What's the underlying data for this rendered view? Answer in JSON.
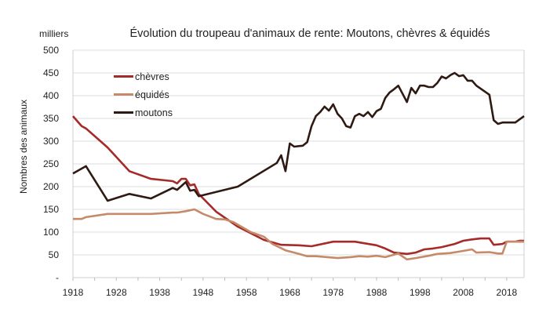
{
  "chart_data": {
    "type": "line",
    "title": "Évolution du troupeau d'animaux de rente: Moutons, chèvres & équidés",
    "unit_label": "milliers",
    "ylabel": "Nombres des animaux",
    "xlabel": "",
    "xlim": [
      1918,
      2022
    ],
    "ylim": [
      0,
      500
    ],
    "x_ticks": [
      1918,
      1928,
      1938,
      1948,
      1958,
      1968,
      1978,
      1988,
      1998,
      2008,
      2018
    ],
    "y_ticks": [
      "-",
      "50",
      "100",
      "150",
      "200",
      "250",
      "300",
      "350",
      "400",
      "450",
      "500"
    ],
    "grid": true,
    "legend_position": "top-left",
    "series": [
      {
        "name": "chèvres",
        "color": "#a52a2a",
        "points": [
          [
            1918,
            355
          ],
          [
            1920,
            333
          ],
          [
            1921,
            328
          ],
          [
            1926,
            286
          ],
          [
            1931,
            234
          ],
          [
            1936,
            217
          ],
          [
            1941,
            212
          ],
          [
            1942,
            207
          ],
          [
            1943,
            217
          ],
          [
            1944,
            217
          ],
          [
            1945,
            203
          ],
          [
            1946,
            205
          ],
          [
            1947,
            184
          ],
          [
            1951,
            145
          ],
          [
            1956,
            112
          ],
          [
            1962,
            83
          ],
          [
            1966,
            72
          ],
          [
            1970,
            71
          ],
          [
            1973,
            69
          ],
          [
            1978,
            79
          ],
          [
            1983,
            79
          ],
          [
            1988,
            71
          ],
          [
            1990,
            64
          ],
          [
            1992,
            55
          ],
          [
            1995,
            52
          ],
          [
            1997,
            55
          ],
          [
            1999,
            62
          ],
          [
            2001,
            64
          ],
          [
            2003,
            67
          ],
          [
            2006,
            74
          ],
          [
            2008,
            81
          ],
          [
            2010,
            84
          ],
          [
            2012,
            86
          ],
          [
            2014,
            86
          ],
          [
            2015,
            72
          ],
          [
            2017,
            74
          ],
          [
            2018,
            79
          ],
          [
            2020,
            79
          ],
          [
            2021,
            81
          ],
          [
            2022,
            81
          ]
        ]
      },
      {
        "name": "équidés",
        "color": "#c48a6a",
        "points": [
          [
            1918,
            129
          ],
          [
            1920,
            129
          ],
          [
            1921,
            133
          ],
          [
            1926,
            140
          ],
          [
            1931,
            140
          ],
          [
            1936,
            140
          ],
          [
            1941,
            143
          ],
          [
            1942,
            143
          ],
          [
            1944,
            146
          ],
          [
            1946,
            150
          ],
          [
            1948,
            140
          ],
          [
            1951,
            129
          ],
          [
            1953,
            128
          ],
          [
            1955,
            122
          ],
          [
            1959,
            100
          ],
          [
            1962,
            90
          ],
          [
            1964,
            74
          ],
          [
            1967,
            60
          ],
          [
            1969,
            55
          ],
          [
            1972,
            47
          ],
          [
            1974,
            47
          ],
          [
            1979,
            43
          ],
          [
            1982,
            45
          ],
          [
            1984,
            47
          ],
          [
            1986,
            46
          ],
          [
            1988,
            48
          ],
          [
            1990,
            45
          ],
          [
            1993,
            53
          ],
          [
            1995,
            40
          ],
          [
            1997,
            43
          ],
          [
            2000,
            48
          ],
          [
            2002,
            52
          ],
          [
            2005,
            54
          ],
          [
            2007,
            57
          ],
          [
            2010,
            62
          ],
          [
            2011,
            55
          ],
          [
            2014,
            56
          ],
          [
            2016,
            53
          ],
          [
            2017,
            53
          ],
          [
            2018,
            79
          ],
          [
            2022,
            79
          ]
        ]
      },
      {
        "name": "moutons",
        "color": "#2e1a12",
        "points": [
          [
            1918,
            229
          ],
          [
            1921,
            245
          ],
          [
            1926,
            169
          ],
          [
            1931,
            184
          ],
          [
            1936,
            174
          ],
          [
            1941,
            197
          ],
          [
            1942,
            193
          ],
          [
            1944,
            210
          ],
          [
            1945,
            191
          ],
          [
            1946,
            193
          ],
          [
            1947,
            179
          ],
          [
            1956,
            200
          ],
          [
            1965,
            252
          ],
          [
            1966,
            269
          ],
          [
            1967,
            234
          ],
          [
            1968,
            295
          ],
          [
            1969,
            288
          ],
          [
            1971,
            290
          ],
          [
            1972,
            298
          ],
          [
            1973,
            333
          ],
          [
            1974,
            355
          ],
          [
            1975,
            364
          ],
          [
            1976,
            376
          ],
          [
            1977,
            367
          ],
          [
            1978,
            381
          ],
          [
            1979,
            360
          ],
          [
            1980,
            350
          ],
          [
            1981,
            333
          ],
          [
            1982,
            330
          ],
          [
            1983,
            355
          ],
          [
            1984,
            360
          ],
          [
            1985,
            355
          ],
          [
            1986,
            364
          ],
          [
            1987,
            353
          ],
          [
            1988,
            366
          ],
          [
            1989,
            371
          ],
          [
            1990,
            395
          ],
          [
            1991,
            407
          ],
          [
            1992,
            414
          ],
          [
            1993,
            422
          ],
          [
            1995,
            386
          ],
          [
            1996,
            417
          ],
          [
            1997,
            405
          ],
          [
            1998,
            422
          ],
          [
            1999,
            422
          ],
          [
            2000,
            419
          ],
          [
            2001,
            419
          ],
          [
            2002,
            428
          ],
          [
            2003,
            442
          ],
          [
            2004,
            438
          ],
          [
            2005,
            445
          ],
          [
            2006,
            450
          ],
          [
            2007,
            443
          ],
          [
            2008,
            445
          ],
          [
            2009,
            433
          ],
          [
            2010,
            433
          ],
          [
            2011,
            422
          ],
          [
            2014,
            402
          ],
          [
            2015,
            346
          ],
          [
            2016,
            338
          ],
          [
            2017,
            341
          ],
          [
            2020,
            341
          ],
          [
            2022,
            355
          ]
        ]
      }
    ]
  }
}
